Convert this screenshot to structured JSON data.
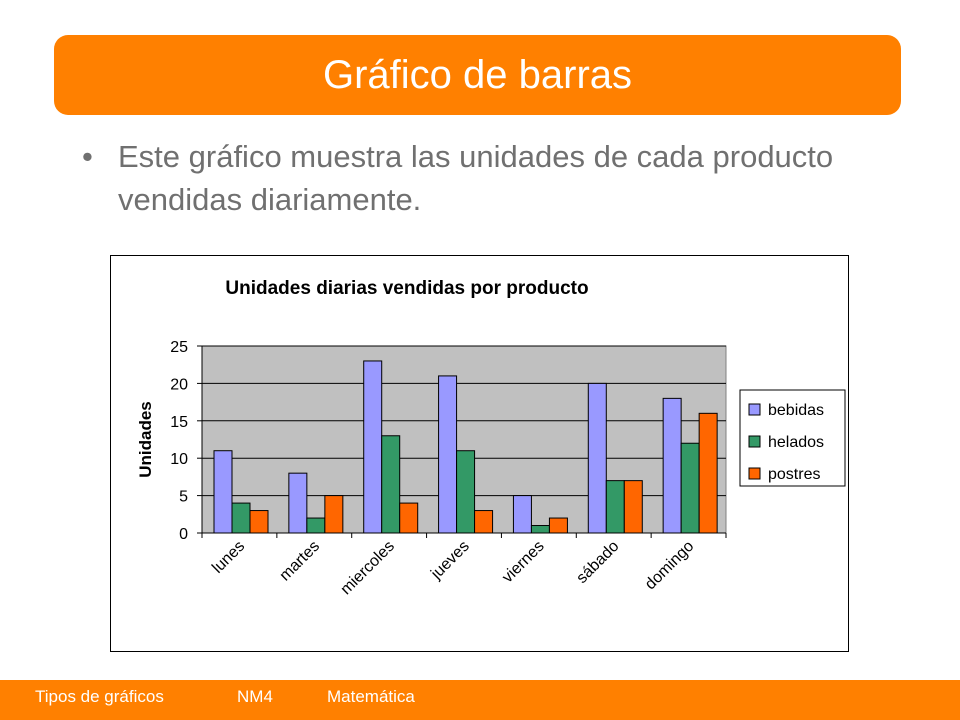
{
  "slide": {
    "title": "Gráfico de barras",
    "bullet": "Este gráfico muestra las unidades de cada producto vendidas diariamente."
  },
  "footer": {
    "items": [
      "Tipos de gráficos",
      "NM4",
      "Matemática"
    ]
  },
  "colors": {
    "accent": "#ff8000",
    "plot_background": "#c0c0c0",
    "series": [
      "#9999ff",
      "#339966",
      "#ff6600"
    ]
  },
  "chart_data": {
    "type": "bar",
    "title": "Unidades diarias vendidas por producto",
    "xlabel": "",
    "ylabel": "Unidades",
    "ylim": [
      0,
      25
    ],
    "yticks": [
      0,
      5,
      10,
      15,
      20,
      25
    ],
    "grid": true,
    "legend": "right",
    "categories": [
      "lunes",
      "martes",
      "miercoles",
      "jueves",
      "viernes",
      "sábado",
      "domingo"
    ],
    "series": [
      {
        "name": "bebidas",
        "values": [
          11,
          8,
          23,
          21,
          5,
          20,
          18
        ]
      },
      {
        "name": "helados",
        "values": [
          4,
          2,
          13,
          11,
          1,
          7,
          12
        ]
      },
      {
        "name": "postres",
        "values": [
          3,
          5,
          4,
          3,
          2,
          7,
          16
        ]
      }
    ]
  }
}
